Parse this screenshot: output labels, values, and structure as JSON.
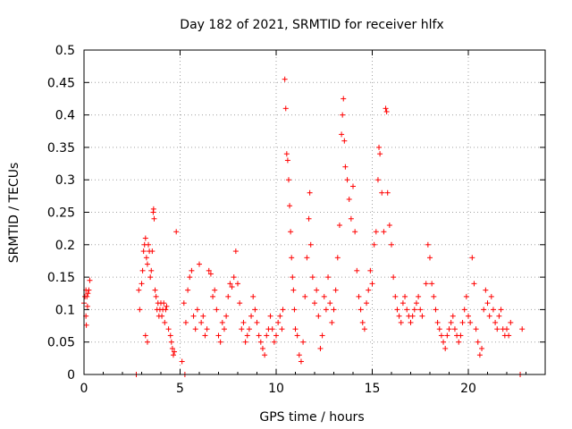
{
  "chart_data": {
    "type": "scatter",
    "title": "Day 182 of 2021, SRMTID for receiver hlfx",
    "xlabel": "GPS time / hours",
    "ylabel": "SRMTID / TECUs",
    "xlim": [
      0,
      24
    ],
    "ylim": [
      0,
      0.5
    ],
    "xticks": [
      "0",
      "5",
      "10",
      "15",
      "20"
    ],
    "yticks": [
      "0",
      "0.05",
      "0.1",
      "0.15",
      "0.2",
      "0.25",
      "0.3",
      "0.35",
      "0.4",
      "0.45",
      "0.5"
    ],
    "grid": true,
    "marker": "+",
    "color": "#ff0000",
    "series": [
      {
        "name": "SRMTID",
        "points": [
          [
            0.0,
            0.11
          ],
          [
            0.05,
            0.12
          ],
          [
            0.1,
            0.13
          ],
          [
            0.1,
            0.09
          ],
          [
            0.15,
            0.12
          ],
          [
            0.2,
            0.125
          ],
          [
            0.25,
            0.13
          ],
          [
            0.3,
            0.145
          ],
          [
            0.12,
            0.076
          ],
          [
            0.18,
            0.105
          ],
          [
            2.72,
            0.0
          ],
          [
            5.25,
            0.0
          ],
          [
            22.7,
            0.0
          ],
          [
            2.85,
            0.13
          ],
          [
            2.9,
            0.1
          ],
          [
            3.0,
            0.14
          ],
          [
            3.05,
            0.16
          ],
          [
            3.1,
            0.19
          ],
          [
            3.15,
            0.2
          ],
          [
            3.2,
            0.21
          ],
          [
            3.25,
            0.18
          ],
          [
            3.3,
            0.17
          ],
          [
            3.35,
            0.2
          ],
          [
            3.4,
            0.19
          ],
          [
            3.45,
            0.15
          ],
          [
            3.5,
            0.16
          ],
          [
            3.55,
            0.19
          ],
          [
            3.6,
            0.25
          ],
          [
            3.62,
            0.255
          ],
          [
            3.65,
            0.24
          ],
          [
            3.7,
            0.13
          ],
          [
            3.75,
            0.12
          ],
          [
            3.8,
            0.1
          ],
          [
            3.85,
            0.11
          ],
          [
            3.9,
            0.09
          ],
          [
            3.95,
            0.1
          ],
          [
            4.0,
            0.11
          ],
          [
            4.05,
            0.09
          ],
          [
            4.1,
            0.1
          ],
          [
            4.15,
            0.11
          ],
          [
            4.2,
            0.08
          ],
          [
            4.25,
            0.1
          ],
          [
            4.3,
            0.105
          ],
          [
            4.4,
            0.07
          ],
          [
            4.5,
            0.06
          ],
          [
            4.55,
            0.05
          ],
          [
            4.6,
            0.04
          ],
          [
            4.65,
            0.03
          ],
          [
            4.7,
            0.035
          ],
          [
            4.8,
            0.22
          ],
          [
            3.2,
            0.06
          ],
          [
            3.3,
            0.05
          ],
          [
            5.1,
            0.02
          ],
          [
            5.2,
            0.11
          ],
          [
            5.3,
            0.08
          ],
          [
            5.4,
            0.13
          ],
          [
            5.5,
            0.15
          ],
          [
            5.6,
            0.16
          ],
          [
            5.7,
            0.09
          ],
          [
            5.8,
            0.07
          ],
          [
            5.9,
            0.1
          ],
          [
            6.0,
            0.17
          ],
          [
            6.1,
            0.08
          ],
          [
            6.2,
            0.09
          ],
          [
            6.3,
            0.06
          ],
          [
            6.4,
            0.07
          ],
          [
            6.5,
            0.16
          ],
          [
            6.6,
            0.155
          ],
          [
            6.7,
            0.12
          ],
          [
            6.8,
            0.13
          ],
          [
            6.9,
            0.1
          ],
          [
            7.0,
            0.06
          ],
          [
            7.1,
            0.05
          ],
          [
            7.2,
            0.08
          ],
          [
            7.3,
            0.07
          ],
          [
            7.4,
            0.09
          ],
          [
            7.5,
            0.12
          ],
          [
            7.6,
            0.14
          ],
          [
            7.7,
            0.135
          ],
          [
            7.8,
            0.15
          ],
          [
            7.9,
            0.19
          ],
          [
            8.0,
            0.14
          ],
          [
            8.1,
            0.11
          ],
          [
            8.2,
            0.07
          ],
          [
            8.3,
            0.08
          ],
          [
            8.4,
            0.05
          ],
          [
            8.5,
            0.06
          ],
          [
            8.6,
            0.07
          ],
          [
            8.7,
            0.09
          ],
          [
            8.8,
            0.12
          ],
          [
            8.9,
            0.1
          ],
          [
            9.0,
            0.08
          ],
          [
            9.1,
            0.06
          ],
          [
            9.2,
            0.05
          ],
          [
            9.3,
            0.04
          ],
          [
            9.4,
            0.03
          ],
          [
            9.5,
            0.06
          ],
          [
            9.6,
            0.07
          ],
          [
            9.7,
            0.09
          ],
          [
            9.8,
            0.07
          ],
          [
            9.9,
            0.05
          ],
          [
            10.0,
            0.06
          ],
          [
            10.1,
            0.08
          ],
          [
            10.2,
            0.09
          ],
          [
            10.3,
            0.07
          ],
          [
            10.35,
            0.1
          ],
          [
            10.45,
            0.455
          ],
          [
            10.5,
            0.41
          ],
          [
            10.55,
            0.34
          ],
          [
            10.6,
            0.33
          ],
          [
            10.65,
            0.3
          ],
          [
            10.7,
            0.26
          ],
          [
            10.75,
            0.22
          ],
          [
            10.8,
            0.18
          ],
          [
            10.85,
            0.15
          ],
          [
            10.9,
            0.13
          ],
          [
            10.95,
            0.1
          ],
          [
            11.0,
            0.07
          ],
          [
            11.1,
            0.06
          ],
          [
            11.2,
            0.03
          ],
          [
            11.3,
            0.02
          ],
          [
            11.4,
            0.05
          ],
          [
            11.5,
            0.12
          ],
          [
            11.6,
            0.18
          ],
          [
            11.7,
            0.24
          ],
          [
            11.75,
            0.28
          ],
          [
            11.8,
            0.2
          ],
          [
            11.9,
            0.15
          ],
          [
            12.0,
            0.11
          ],
          [
            12.1,
            0.13
          ],
          [
            12.2,
            0.09
          ],
          [
            12.3,
            0.04
          ],
          [
            12.4,
            0.06
          ],
          [
            12.5,
            0.12
          ],
          [
            12.6,
            0.1
          ],
          [
            12.7,
            0.15
          ],
          [
            12.8,
            0.11
          ],
          [
            12.9,
            0.08
          ],
          [
            13.0,
            0.1
          ],
          [
            13.1,
            0.13
          ],
          [
            13.2,
            0.18
          ],
          [
            13.3,
            0.23
          ],
          [
            13.4,
            0.37
          ],
          [
            13.45,
            0.4
          ],
          [
            13.5,
            0.425
          ],
          [
            13.55,
            0.36
          ],
          [
            13.6,
            0.32
          ],
          [
            13.7,
            0.3
          ],
          [
            13.8,
            0.27
          ],
          [
            13.9,
            0.24
          ],
          [
            14.0,
            0.29
          ],
          [
            14.1,
            0.22
          ],
          [
            14.2,
            0.16
          ],
          [
            14.3,
            0.12
          ],
          [
            14.4,
            0.1
          ],
          [
            14.5,
            0.08
          ],
          [
            14.6,
            0.07
          ],
          [
            14.7,
            0.11
          ],
          [
            14.8,
            0.13
          ],
          [
            14.9,
            0.16
          ],
          [
            15.0,
            0.14
          ],
          [
            15.1,
            0.2
          ],
          [
            15.2,
            0.22
          ],
          [
            15.3,
            0.3
          ],
          [
            15.35,
            0.35
          ],
          [
            15.4,
            0.34
          ],
          [
            15.5,
            0.28
          ],
          [
            15.6,
            0.22
          ],
          [
            15.7,
            0.41
          ],
          [
            15.75,
            0.405
          ],
          [
            15.8,
            0.28
          ],
          [
            15.9,
            0.23
          ],
          [
            16.0,
            0.2
          ],
          [
            16.1,
            0.15
          ],
          [
            16.2,
            0.12
          ],
          [
            16.3,
            0.1
          ],
          [
            16.4,
            0.09
          ],
          [
            16.5,
            0.08
          ],
          [
            16.6,
            0.11
          ],
          [
            16.7,
            0.12
          ],
          [
            16.8,
            0.1
          ],
          [
            16.9,
            0.09
          ],
          [
            17.0,
            0.08
          ],
          [
            17.1,
            0.09
          ],
          [
            17.2,
            0.1
          ],
          [
            17.3,
            0.11
          ],
          [
            17.4,
            0.12
          ],
          [
            17.5,
            0.1
          ],
          [
            17.6,
            0.09
          ],
          [
            17.8,
            0.14
          ],
          [
            17.9,
            0.2
          ],
          [
            18.0,
            0.18
          ],
          [
            18.1,
            0.14
          ],
          [
            18.2,
            0.12
          ],
          [
            18.3,
            0.1
          ],
          [
            18.4,
            0.08
          ],
          [
            18.5,
            0.07
          ],
          [
            18.6,
            0.06
          ],
          [
            18.7,
            0.05
          ],
          [
            18.8,
            0.04
          ],
          [
            18.9,
            0.06
          ],
          [
            19.0,
            0.07
          ],
          [
            19.1,
            0.08
          ],
          [
            19.2,
            0.09
          ],
          [
            19.3,
            0.07
          ],
          [
            19.4,
            0.06
          ],
          [
            19.5,
            0.05
          ],
          [
            19.6,
            0.06
          ],
          [
            19.7,
            0.08
          ],
          [
            19.8,
            0.1
          ],
          [
            19.9,
            0.12
          ],
          [
            20.0,
            0.09
          ],
          [
            20.1,
            0.08
          ],
          [
            20.2,
            0.18
          ],
          [
            20.3,
            0.14
          ],
          [
            20.4,
            0.07
          ],
          [
            20.5,
            0.05
          ],
          [
            20.6,
            0.03
          ],
          [
            20.7,
            0.04
          ],
          [
            20.8,
            0.1
          ],
          [
            20.9,
            0.13
          ],
          [
            21.0,
            0.11
          ],
          [
            21.1,
            0.09
          ],
          [
            21.2,
            0.12
          ],
          [
            21.3,
            0.1
          ],
          [
            21.4,
            0.08
          ],
          [
            21.5,
            0.07
          ],
          [
            21.6,
            0.09
          ],
          [
            21.7,
            0.1
          ],
          [
            21.8,
            0.07
          ],
          [
            21.9,
            0.06
          ],
          [
            22.0,
            0.07
          ],
          [
            22.1,
            0.06
          ],
          [
            22.2,
            0.08
          ],
          [
            22.8,
            0.07
          ]
        ]
      }
    ]
  }
}
